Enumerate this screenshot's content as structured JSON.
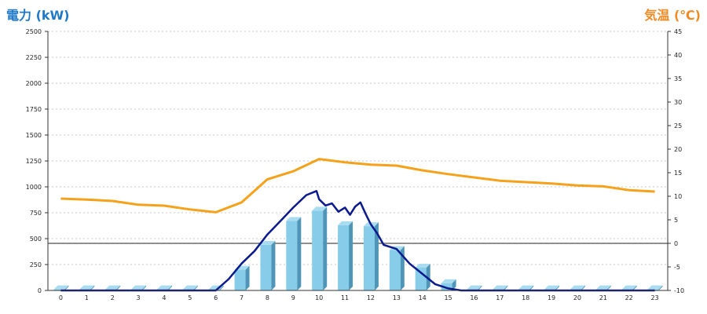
{
  "left_axis_title": "電力 (kW)",
  "right_axis_title": "気温 (℃)",
  "chart_data": {
    "type": "bar",
    "title": "",
    "grid": true,
    "categories": [
      "0",
      "1",
      "2",
      "3",
      "4",
      "5",
      "6",
      "7",
      "8",
      "9",
      "10",
      "11",
      "12",
      "13",
      "14",
      "15",
      "16",
      "17",
      "18",
      "19",
      "20",
      "21",
      "22",
      "23"
    ],
    "y_left": {
      "label": "電力 (kW)",
      "ylim": [
        0,
        2500
      ],
      "ticks": [
        0,
        250,
        500,
        750,
        1000,
        1250,
        1500,
        1750,
        2000,
        2250,
        2500
      ]
    },
    "y_right": {
      "label": "気温 (℃)",
      "ylim": [
        -10,
        45
      ],
      "ticks": [
        -10,
        -5,
        0,
        5,
        10,
        15,
        20,
        25,
        30,
        35,
        40,
        45
      ]
    },
    "series": [
      {
        "kind": "bar",
        "axis": "left",
        "color": "#87cde9",
        "values": [
          10,
          10,
          10,
          10,
          10,
          10,
          10,
          200,
          440,
          670,
          770,
          630,
          620,
          390,
          220,
          70,
          10,
          10,
          10,
          10,
          10,
          10,
          10,
          10
        ]
      },
      {
        "kind": "line",
        "axis": "left",
        "color": "#0b1a8c",
        "x": [
          0,
          6,
          6.5,
          7,
          7.5,
          8,
          8.5,
          9,
          9.5,
          9.9,
          10,
          10.25,
          10.5,
          10.75,
          11,
          11.2,
          11.4,
          11.6,
          11.8,
          12,
          12.25,
          12.5,
          12.75,
          13,
          13.5,
          14,
          14.5,
          15,
          15.5,
          23
        ],
        "values": [
          0,
          0,
          110,
          260,
          380,
          540,
          670,
          800,
          920,
          960,
          880,
          820,
          840,
          760,
          800,
          730,
          810,
          850,
          740,
          640,
          550,
          440,
          420,
          400,
          260,
          160,
          60,
          20,
          0,
          0
        ]
      },
      {
        "kind": "line",
        "axis": "right",
        "color": "#f5a21a",
        "x": [
          0,
          1,
          2,
          3,
          4,
          5,
          6,
          7,
          8,
          9,
          10,
          11,
          12,
          13,
          14,
          15,
          16,
          17,
          18,
          19,
          20,
          21,
          22,
          23
        ],
        "values": [
          9.5,
          9.3,
          9.0,
          8.2,
          8.0,
          7.2,
          6.6,
          8.7,
          13.6,
          15.3,
          17.9,
          17.2,
          16.7,
          16.5,
          15.5,
          14.7,
          14.0,
          13.3,
          13.0,
          12.7,
          12.3,
          12.1,
          11.3,
          11.0
        ]
      }
    ]
  }
}
